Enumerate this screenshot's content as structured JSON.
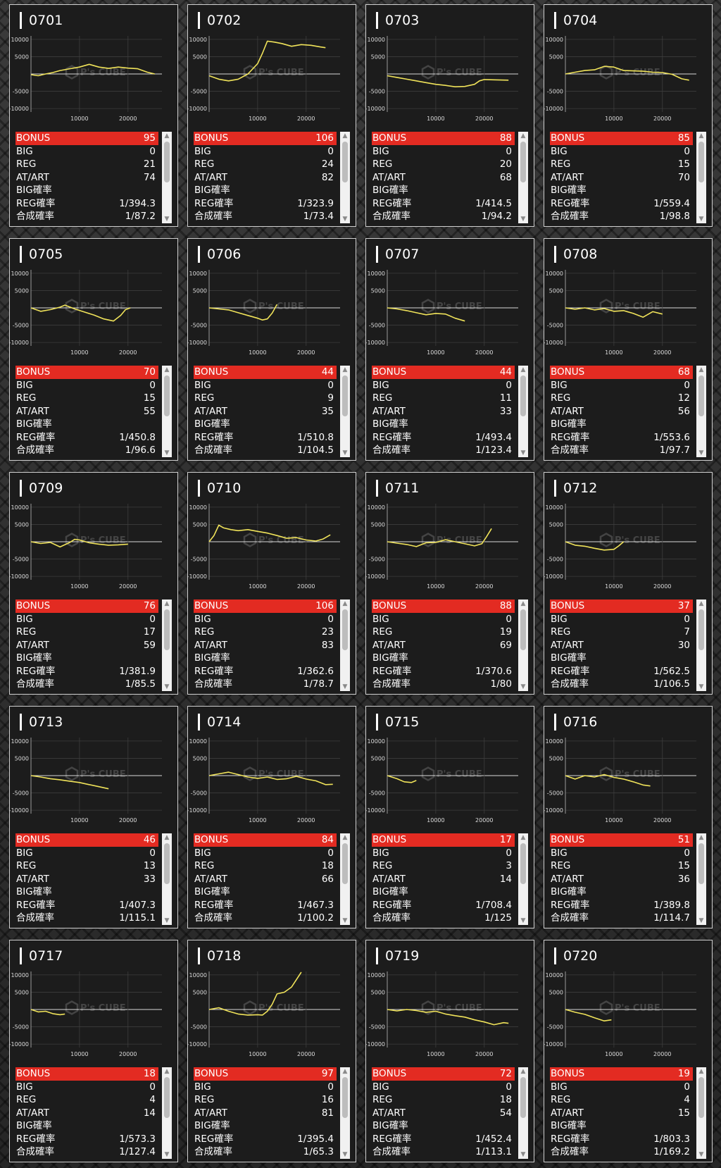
{
  "labels": {
    "bonus": "BONUS",
    "big": "BIG",
    "reg": "REG",
    "at_art": "AT/ART",
    "big_prob": "BIG確率",
    "reg_prob": "REG確率",
    "combined_prob": "合成確率"
  },
  "watermark": "P's CUBE",
  "colors": {
    "bonus_bar": "#e32b22",
    "chart_line": "#f0e35a",
    "card_bg": "#1c1c1c",
    "card_border": "#cfcfcf"
  },
  "machines": [
    {
      "id": "0701",
      "bonus": "95",
      "big": "0",
      "reg": "21",
      "at_art": "74",
      "big_prob": "",
      "reg_prob": "1/394.3",
      "combined_prob": "1/87.2"
    },
    {
      "id": "0702",
      "bonus": "106",
      "big": "0",
      "reg": "24",
      "at_art": "82",
      "big_prob": "",
      "reg_prob": "1/323.9",
      "combined_prob": "1/73.4"
    },
    {
      "id": "0703",
      "bonus": "88",
      "big": "0",
      "reg": "20",
      "at_art": "68",
      "big_prob": "",
      "reg_prob": "1/414.5",
      "combined_prob": "1/94.2"
    },
    {
      "id": "0704",
      "bonus": "85",
      "big": "0",
      "reg": "15",
      "at_art": "70",
      "big_prob": "",
      "reg_prob": "1/559.4",
      "combined_prob": "1/98.8"
    },
    {
      "id": "0705",
      "bonus": "70",
      "big": "0",
      "reg": "15",
      "at_art": "55",
      "big_prob": "",
      "reg_prob": "1/450.8",
      "combined_prob": "1/96.6"
    },
    {
      "id": "0706",
      "bonus": "44",
      "big": "0",
      "reg": "9",
      "at_art": "35",
      "big_prob": "",
      "reg_prob": "1/510.8",
      "combined_prob": "1/104.5"
    },
    {
      "id": "0707",
      "bonus": "44",
      "big": "0",
      "reg": "11",
      "at_art": "33",
      "big_prob": "",
      "reg_prob": "1/493.4",
      "combined_prob": "1/123.4"
    },
    {
      "id": "0708",
      "bonus": "68",
      "big": "0",
      "reg": "12",
      "at_art": "56",
      "big_prob": "",
      "reg_prob": "1/553.6",
      "combined_prob": "1/97.7"
    },
    {
      "id": "0709",
      "bonus": "76",
      "big": "0",
      "reg": "17",
      "at_art": "59",
      "big_prob": "",
      "reg_prob": "1/381.9",
      "combined_prob": "1/85.5"
    },
    {
      "id": "0710",
      "bonus": "106",
      "big": "0",
      "reg": "23",
      "at_art": "83",
      "big_prob": "",
      "reg_prob": "1/362.6",
      "combined_prob": "1/78.7"
    },
    {
      "id": "0711",
      "bonus": "88",
      "big": "0",
      "reg": "19",
      "at_art": "69",
      "big_prob": "",
      "reg_prob": "1/370.6",
      "combined_prob": "1/80"
    },
    {
      "id": "0712",
      "bonus": "37",
      "big": "0",
      "reg": "7",
      "at_art": "30",
      "big_prob": "",
      "reg_prob": "1/562.5",
      "combined_prob": "1/106.5"
    },
    {
      "id": "0713",
      "bonus": "46",
      "big": "0",
      "reg": "13",
      "at_art": "33",
      "big_prob": "",
      "reg_prob": "1/407.3",
      "combined_prob": "1/115.1"
    },
    {
      "id": "0714",
      "bonus": "84",
      "big": "0",
      "reg": "18",
      "at_art": "66",
      "big_prob": "",
      "reg_prob": "1/467.3",
      "combined_prob": "1/100.2"
    },
    {
      "id": "0715",
      "bonus": "17",
      "big": "0",
      "reg": "3",
      "at_art": "14",
      "big_prob": "",
      "reg_prob": "1/708.4",
      "combined_prob": "1/125"
    },
    {
      "id": "0716",
      "bonus": "51",
      "big": "0",
      "reg": "15",
      "at_art": "36",
      "big_prob": "",
      "reg_prob": "1/389.8",
      "combined_prob": "1/114.7"
    },
    {
      "id": "0717",
      "bonus": "18",
      "big": "0",
      "reg": "4",
      "at_art": "14",
      "big_prob": "",
      "reg_prob": "1/573.3",
      "combined_prob": "1/127.4"
    },
    {
      "id": "0718",
      "bonus": "97",
      "big": "0",
      "reg": "16",
      "at_art": "81",
      "big_prob": "",
      "reg_prob": "1/395.4",
      "combined_prob": "1/65.3"
    },
    {
      "id": "0719",
      "bonus": "72",
      "big": "0",
      "reg": "18",
      "at_art": "54",
      "big_prob": "",
      "reg_prob": "1/452.4",
      "combined_prob": "1/113.1"
    },
    {
      "id": "0720",
      "bonus": "19",
      "big": "0",
      "reg": "4",
      "at_art": "15",
      "big_prob": "",
      "reg_prob": "1/803.3",
      "combined_prob": "1/169.2"
    }
  ],
  "chart_data": {
    "type": "line",
    "xticks": [
      10000,
      20000
    ],
    "yticks": [
      10000,
      5000,
      0,
      -5000,
      -10000
    ],
    "ytick_labels": [
      "10000",
      "5000",
      "",
      "-5000",
      "-10000"
    ],
    "xlim": [
      0,
      27000
    ],
    "ylim": [
      -11000,
      11000
    ],
    "series": [
      {
        "x": [
          0,
          1500,
          3000,
          4500,
          6000,
          8000,
          10000,
          12000,
          14000,
          16000,
          18000,
          20000,
          22000,
          24000,
          25500
        ],
        "y": [
          -200,
          -500,
          0,
          400,
          1000,
          1500,
          2000,
          2800,
          2000,
          1600,
          2000,
          1700,
          1500,
          500,
          0
        ]
      },
      {
        "x": [
          0,
          2000,
          4000,
          6000,
          8000,
          10000,
          11000,
          12000,
          13500,
          15000,
          17000,
          19000,
          21000,
          23000,
          24000
        ],
        "y": [
          -500,
          -1500,
          -2000,
          -1500,
          0,
          3000,
          6000,
          9500,
          9200,
          8800,
          8000,
          8500,
          8300,
          7800,
          7600
        ]
      },
      {
        "x": [
          0,
          2000,
          4000,
          6000,
          8000,
          10000,
          12000,
          14000,
          16000,
          18000,
          19000,
          20000,
          22000,
          25000
        ],
        "y": [
          -500,
          -1000,
          -1500,
          -2000,
          -2500,
          -3000,
          -3300,
          -3700,
          -3600,
          -3000,
          -2000,
          -1600,
          -1700,
          -1800
        ]
      },
      {
        "x": [
          0,
          2000,
          4000,
          6000,
          8000,
          10000,
          12000,
          14000,
          16000,
          18000,
          20000,
          22000,
          24000,
          25500
        ],
        "y": [
          0,
          500,
          1000,
          1200,
          2200,
          2000,
          1000,
          900,
          800,
          500,
          400,
          -100,
          -1400,
          -1800
        ]
      },
      {
        "x": [
          0,
          2000,
          4000,
          6000,
          7000,
          9000,
          11000,
          13000,
          15000,
          17000,
          18500,
          19500,
          20500
        ],
        "y": [
          0,
          -1000,
          -500,
          200,
          800,
          -300,
          -1200,
          -2100,
          -3200,
          -3800,
          -2200,
          -500,
          0
        ]
      },
      {
        "x": [
          0,
          2000,
          4000,
          6000,
          8000,
          10000,
          11000,
          12000,
          13000,
          14000
        ],
        "y": [
          0,
          -300,
          -600,
          -1400,
          -2200,
          -3000,
          -3500,
          -3200,
          -1500,
          1000
        ]
      },
      {
        "x": [
          0,
          2000,
          4000,
          6000,
          8000,
          10000,
          12000,
          14000,
          16000
        ],
        "y": [
          0,
          -300,
          -800,
          -1400,
          -2000,
          -1600,
          -1800,
          -3000,
          -3800
        ]
      },
      {
        "x": [
          0,
          2000,
          4000,
          6000,
          8000,
          10000,
          12000,
          14000,
          16000,
          18000,
          20000
        ],
        "y": [
          0,
          -400,
          0,
          -600,
          -200,
          -1000,
          -800,
          -1600,
          -2700,
          -1100,
          -1800
        ]
      },
      {
        "x": [
          0,
          2000,
          4000,
          6000,
          8000,
          9000,
          10000,
          12000,
          14000,
          16000,
          18000,
          20000
        ],
        "y": [
          0,
          -500,
          -200,
          -1500,
          -200,
          700,
          500,
          -300,
          -700,
          -1000,
          -900,
          -700
        ]
      },
      {
        "x": [
          0,
          1000,
          2000,
          3000,
          4500,
          6000,
          8000,
          10000,
          12000,
          14000,
          16000,
          18000,
          20000,
          22000,
          23500,
          25000
        ],
        "y": [
          0,
          1800,
          4800,
          4000,
          3500,
          3200,
          3500,
          3000,
          2500,
          1800,
          1000,
          1200,
          500,
          200,
          800,
          2000
        ]
      },
      {
        "x": [
          0,
          2000,
          4000,
          6000,
          8000,
          10000,
          12000,
          14000,
          16000,
          18000,
          19500,
          20500,
          21500
        ],
        "y": [
          0,
          -400,
          -800,
          -1400,
          -300,
          -200,
          600,
          0,
          -600,
          -1200,
          -600,
          1500,
          3800
        ]
      },
      {
        "x": [
          0,
          2000,
          4000,
          6000,
          8000,
          10000,
          11000,
          12000
        ],
        "y": [
          0,
          -1000,
          -1300,
          -1900,
          -2400,
          -2200,
          -1200,
          0
        ]
      },
      {
        "x": [
          0,
          2000,
          4000,
          6000,
          8000,
          10000,
          12000,
          14000,
          16000
        ],
        "y": [
          0,
          -400,
          -900,
          -1200,
          -1600,
          -2000,
          -2600,
          -3200,
          -3800
        ]
      },
      {
        "x": [
          0,
          2000,
          4000,
          6000,
          8000,
          10000,
          12000,
          14000,
          16000,
          18000,
          20000,
          22000,
          24000,
          25500
        ],
        "y": [
          0,
          500,
          1000,
          300,
          -400,
          -800,
          -400,
          -1100,
          -900,
          -200,
          -1000,
          -1500,
          -2600,
          -2500
        ]
      },
      {
        "x": [
          0,
          2000,
          3500,
          5000,
          6000
        ],
        "y": [
          0,
          -900,
          -1800,
          -2000,
          -1400
        ]
      },
      {
        "x": [
          0,
          2000,
          4000,
          6000,
          8000,
          10000,
          12000,
          14000,
          16000,
          17500
        ],
        "y": [
          0,
          -1000,
          0,
          -400,
          300,
          -500,
          -1000,
          -1800,
          -2700,
          -3000
        ]
      },
      {
        "x": [
          0,
          1500,
          3000,
          4500,
          6000,
          7000
        ],
        "y": [
          0,
          -700,
          -500,
          -1200,
          -1500,
          -1300
        ]
      },
      {
        "x": [
          0,
          2000,
          4000,
          6000,
          8000,
          10000,
          11000,
          12000,
          13000,
          14000,
          15500,
          17000,
          19000
        ],
        "y": [
          0,
          500,
          -500,
          -1300,
          -1600,
          -1500,
          -1600,
          -500,
          1500,
          4500,
          5000,
          6500,
          10800
        ]
      },
      {
        "x": [
          0,
          2000,
          4000,
          6000,
          8000,
          10000,
          12000,
          14000,
          16000,
          18000,
          20000,
          22000,
          24000,
          25000
        ],
        "y": [
          0,
          -400,
          0,
          -300,
          -800,
          -500,
          -1300,
          -1800,
          -2200,
          -3000,
          -3600,
          -4400,
          -3800,
          -4000
        ]
      },
      {
        "x": [
          0,
          2000,
          4000,
          6000,
          8000,
          9500
        ],
        "y": [
          0,
          -800,
          -1400,
          -2400,
          -3300,
          -3000
        ]
      }
    ]
  }
}
